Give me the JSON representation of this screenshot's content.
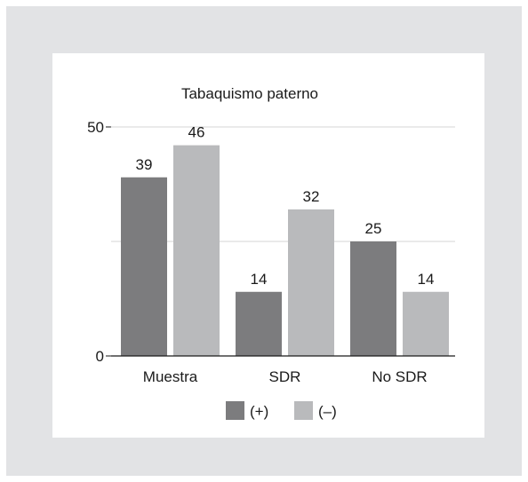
{
  "chart_data": {
    "type": "bar",
    "title": "Tabaquismo paterno",
    "categories": [
      "Muestra",
      "SDR",
      "No SDR"
    ],
    "series": [
      {
        "name": "(+)",
        "values": [
          39,
          14,
          25
        ],
        "color": "#7c7c7e"
      },
      {
        "name": "(–)",
        "values": [
          46,
          32,
          14
        ],
        "color": "#b9babc"
      }
    ],
    "ylim": [
      0,
      50
    ],
    "yticks": [
      0,
      50
    ],
    "gridlines": [
      25,
      50
    ],
    "xlabel": "",
    "ylabel": "",
    "legend": "bottom",
    "grid": true
  }
}
